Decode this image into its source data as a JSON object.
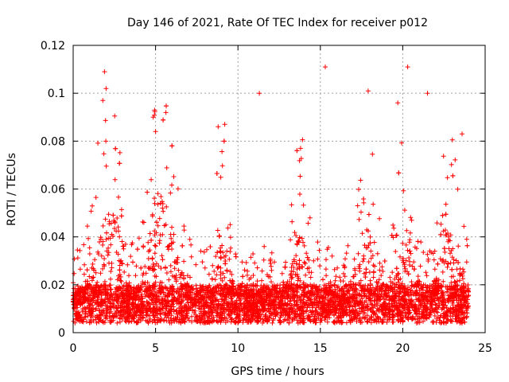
{
  "chart_data": {
    "type": "scatter",
    "title": "Day 146 of 2021, Rate Of TEC Index for receiver p012",
    "xlabel": "GPS time / hours",
    "ylabel": "ROTI / TECUs",
    "xlim": [
      0,
      25
    ],
    "ylim": [
      0,
      0.12
    ],
    "xticks": [
      "0",
      "5",
      "10",
      "15",
      "20",
      "25"
    ],
    "xtick_values": [
      0,
      5,
      10,
      15,
      20,
      25
    ],
    "yticks": [
      "0",
      "0.02",
      "0.04",
      "0.06",
      "0.08",
      "0.1",
      "0.12"
    ],
    "ytick_values": [
      0,
      0.02,
      0.04,
      0.06,
      0.08,
      0.1,
      0.12
    ],
    "grid": true,
    "marker": "plus",
    "color": "#ff0000",
    "x_range_of_points": [
      0,
      24
    ],
    "notable_points": [
      {
        "x": 1.9,
        "y": 0.109
      },
      {
        "x": 2.0,
        "y": 0.102
      },
      {
        "x": 1.8,
        "y": 0.097
      },
      {
        "x": 5.0,
        "y": 0.084
      },
      {
        "x": 11.3,
        "y": 0.1
      },
      {
        "x": 15.3,
        "y": 0.111
      },
      {
        "x": 17.9,
        "y": 0.101
      },
      {
        "x": 20.3,
        "y": 0.111
      },
      {
        "x": 19.7,
        "y": 0.096
      },
      {
        "x": 21.5,
        "y": 0.1
      },
      {
        "x": 8.8,
        "y": 0.086
      },
      {
        "x": 9.2,
        "y": 0.087
      },
      {
        "x": 13.8,
        "y": 0.077
      },
      {
        "x": 23.6,
        "y": 0.083
      }
    ]
  }
}
